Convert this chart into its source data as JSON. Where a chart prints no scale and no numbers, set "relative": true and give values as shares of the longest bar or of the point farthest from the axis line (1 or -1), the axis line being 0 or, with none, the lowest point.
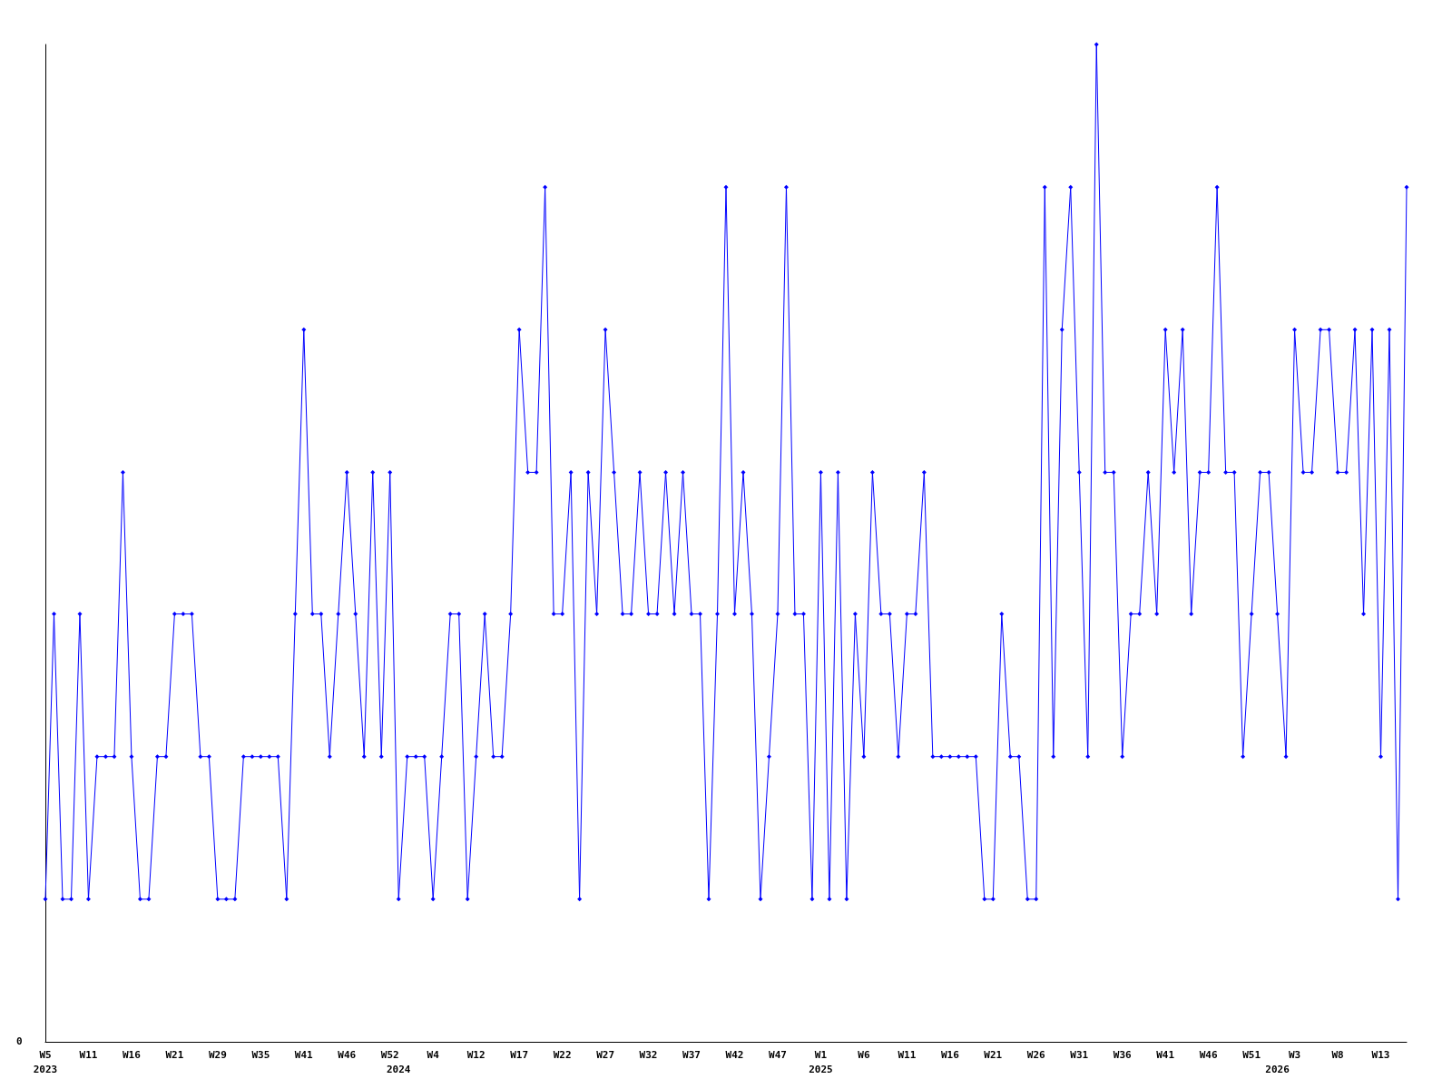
{
  "chart_data": {
    "type": "line",
    "relative": true,
    "marker": "diamond",
    "line_style": "solid",
    "grid": false,
    "annotations": [
      "0"
    ],
    "categories": [
      "W5\n2023",
      null,
      null,
      null,
      null,
      "W11",
      null,
      null,
      null,
      null,
      "W16",
      null,
      null,
      null,
      null,
      "W21",
      null,
      null,
      null,
      null,
      "W29",
      null,
      null,
      null,
      null,
      "W35",
      null,
      null,
      null,
      null,
      "W41",
      null,
      null,
      null,
      null,
      "W46",
      null,
      null,
      null,
      null,
      "W52",
      "\n2024",
      null,
      null,
      null,
      "W4",
      null,
      null,
      null,
      null,
      "W12",
      null,
      null,
      null,
      null,
      "W17",
      null,
      null,
      null,
      null,
      "W22",
      null,
      null,
      null,
      null,
      "W27",
      null,
      null,
      null,
      null,
      "W32",
      null,
      null,
      null,
      null,
      "W37",
      null,
      null,
      null,
      null,
      "W42",
      null,
      null,
      null,
      null,
      "W47",
      null,
      null,
      null,
      null,
      "W1\n2025",
      null,
      null,
      null,
      null,
      "W6",
      null,
      null,
      null,
      null,
      "W11",
      null,
      null,
      null,
      null,
      "W16",
      null,
      null,
      null,
      null,
      "W21",
      null,
      null,
      null,
      null,
      "W26",
      null,
      null,
      null,
      null,
      "W31",
      null,
      null,
      null,
      null,
      "W36",
      null,
      null,
      null,
      null,
      "W41",
      null,
      null,
      null,
      null,
      "W46",
      null,
      null,
      null,
      null,
      "W51",
      null,
      null,
      "\n2026",
      null,
      "W3",
      null,
      null,
      null,
      null,
      "W8",
      null,
      null,
      null,
      null,
      "W13",
      null,
      null,
      null
    ],
    "series": [
      {
        "color": "#0000ff",
        "values": [
          0.143,
          0.429,
          0.143,
          0.143,
          0.429,
          0.143,
          0.286,
          0.286,
          0.286,
          0.571,
          0.286,
          0.143,
          0.143,
          0.286,
          0.286,
          0.429,
          0.429,
          0.429,
          0.286,
          0.286,
          0.143,
          0.143,
          0.143,
          0.286,
          0.286,
          0.286,
          0.286,
          0.286,
          0.143,
          0.429,
          0.714,
          0.429,
          0.429,
          0.286,
          0.429,
          0.571,
          0.429,
          0.286,
          0.571,
          0.286,
          0.571,
          0.143,
          0.286,
          0.286,
          0.286,
          0.143,
          0.286,
          0.429,
          0.429,
          0.143,
          0.286,
          0.429,
          0.286,
          0.286,
          0.429,
          0.714,
          0.571,
          0.571,
          0.857,
          0.429,
          0.429,
          0.571,
          0.143,
          0.571,
          0.429,
          0.714,
          0.571,
          0.429,
          0.429,
          0.571,
          0.429,
          0.429,
          0.571,
          0.429,
          0.571,
          0.429,
          0.429,
          0.143,
          0.429,
          0.857,
          0.429,
          0.571,
          0.429,
          0.143,
          0.286,
          0.429,
          0.857,
          0.429,
          0.429,
          0.143,
          0.571,
          0.143,
          0.571,
          0.143,
          0.429,
          0.286,
          0.571,
          0.429,
          0.429,
          0.286,
          0.429,
          0.429,
          0.571,
          0.286,
          0.286,
          0.286,
          0.286,
          0.286,
          0.286,
          0.143,
          0.143,
          0.429,
          0.286,
          0.286,
          0.143,
          0.143,
          0.857,
          0.286,
          0.714,
          0.857,
          0.571,
          0.286,
          1,
          0.571,
          0.571,
          0.286,
          0.429,
          0.429,
          0.571,
          0.429,
          0.714,
          0.571,
          0.714,
          0.429,
          0.571,
          0.571,
          0.857,
          0.571,
          0.571,
          0.286,
          0.429,
          0.571,
          0.571,
          0.429,
          0.286,
          0.714,
          0.571,
          0.571,
          0.714,
          0.714,
          0.571,
          0.571,
          0.714,
          0.429,
          0.714,
          0.286,
          0.714,
          0.143,
          0.857
        ]
      }
    ]
  }
}
